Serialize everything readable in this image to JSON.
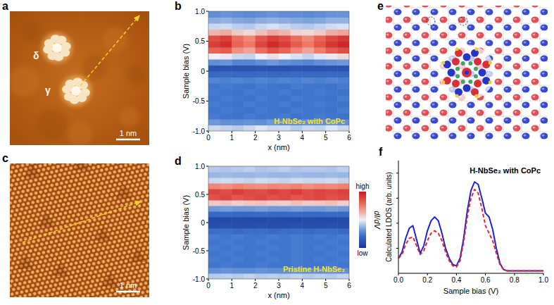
{
  "chart_data": [
    {
      "panel": "a",
      "type": "image",
      "labels": [
        "δ",
        "γ"
      ],
      "scale_bar": "1 nm"
    },
    {
      "panel": "b",
      "type": "heatmap",
      "annotation": "H-NbSe₂ with CoPc",
      "x_label": "x (nm)",
      "y_label": "Sample bias (V)",
      "xlim": [
        0,
        6
      ],
      "ylim": [
        -1,
        1
      ],
      "xticks": [
        0,
        1,
        2,
        3,
        4,
        5,
        6
      ],
      "yticks": [
        {
          "value": -1,
          "label": "-1.0"
        },
        -0.5,
        0,
        0.5,
        {
          "value": 1,
          "label": "1.0"
        }
      ],
      "xbins": [
        0,
        0.5,
        1,
        1.5,
        2,
        2.5,
        3,
        3.5,
        4,
        4.5,
        5,
        5.5,
        6
      ],
      "ybins": [
        -1,
        -0.9,
        -0.8,
        -0.7,
        -0.6,
        -0.5,
        -0.4,
        -0.3,
        -0.2,
        -0.1,
        0,
        0.1,
        0.2,
        0.3,
        0.4,
        0.5,
        0.6,
        0.7,
        0.8,
        0.9,
        1
      ],
      "cells": [
        [
          0.45,
          0.44,
          0.42,
          0.45,
          0.48,
          0.45,
          0.46,
          0.42,
          0.45,
          0.44,
          0.48,
          0.45
        ],
        [
          0.32,
          0.3,
          0.3,
          0.31,
          0.3,
          0.32,
          0.3,
          0.3,
          0.31,
          0.3,
          0.32,
          0.3
        ],
        [
          0.26,
          0.25,
          0.24,
          0.26,
          0.25,
          0.25,
          0.26,
          0.24,
          0.25,
          0.26,
          0.25,
          0.24
        ],
        [
          0.25,
          0.26,
          0.25,
          0.24,
          0.26,
          0.25,
          0.24,
          0.26,
          0.25,
          0.25,
          0.24,
          0.26
        ],
        [
          0.26,
          0.25,
          0.24,
          0.26,
          0.25,
          0.25,
          0.26,
          0.24,
          0.25,
          0.26,
          0.25,
          0.24
        ],
        [
          0.25,
          0.26,
          0.25,
          0.24,
          0.26,
          0.25,
          0.24,
          0.26,
          0.25,
          0.25,
          0.24,
          0.26
        ],
        [
          0.26,
          0.25,
          0.24,
          0.26,
          0.25,
          0.25,
          0.26,
          0.24,
          0.25,
          0.26,
          0.25,
          0.24
        ],
        [
          0.25,
          0.26,
          0.25,
          0.24,
          0.26,
          0.25,
          0.24,
          0.26,
          0.25,
          0.25,
          0.24,
          0.26
        ],
        [
          0.28,
          0.27,
          0.28,
          0.27,
          0.28,
          0.27,
          0.28,
          0.27,
          0.28,
          0.27,
          0.28,
          0.27
        ],
        [
          0.2,
          0.21,
          0.2,
          0.2,
          0.21,
          0.2,
          0.2,
          0.21,
          0.2,
          0.2,
          0.21,
          0.2
        ],
        [
          0.12,
          0.13,
          0.12,
          0.12,
          0.13,
          0.12,
          0.12,
          0.13,
          0.12,
          0.12,
          0.13,
          0.12
        ],
        [
          0.3,
          0.31,
          0.28,
          0.28,
          0.3,
          0.32,
          0.3,
          0.29,
          0.28,
          0.3,
          0.31,
          0.32
        ],
        [
          0.5,
          0.52,
          0.45,
          0.44,
          0.5,
          0.54,
          0.5,
          0.47,
          0.44,
          0.48,
          0.52,
          0.55
        ],
        [
          0.8,
          0.82,
          0.7,
          0.66,
          0.78,
          0.85,
          0.8,
          0.72,
          0.66,
          0.74,
          0.82,
          0.86
        ],
        [
          0.9,
          0.94,
          0.8,
          0.75,
          0.88,
          0.95,
          0.9,
          0.82,
          0.75,
          0.84,
          0.92,
          0.96
        ],
        [
          0.86,
          0.9,
          0.78,
          0.72,
          0.84,
          0.9,
          0.86,
          0.78,
          0.72,
          0.8,
          0.88,
          0.92
        ],
        [
          0.62,
          0.65,
          0.58,
          0.55,
          0.6,
          0.65,
          0.62,
          0.56,
          0.55,
          0.58,
          0.64,
          0.66
        ],
        [
          0.45,
          0.46,
          0.43,
          0.42,
          0.45,
          0.47,
          0.45,
          0.43,
          0.42,
          0.44,
          0.46,
          0.47
        ],
        [
          0.36,
          0.37,
          0.35,
          0.34,
          0.36,
          0.37,
          0.36,
          0.35,
          0.34,
          0.35,
          0.37,
          0.37
        ],
        [
          0.3,
          0.31,
          0.3,
          0.29,
          0.3,
          0.31,
          0.3,
          0.3,
          0.29,
          0.3,
          0.31,
          0.31
        ]
      ]
    },
    {
      "panel": "c",
      "type": "image",
      "scale_bar": "1 nm"
    },
    {
      "panel": "d",
      "type": "heatmap",
      "annotation": "Pristine H-NbSe₂",
      "x_label": "x (nm)",
      "y_label": "Sample bias (V)",
      "xlim": [
        0,
        6
      ],
      "ylim": [
        -1,
        1
      ],
      "xticks": [
        0,
        1,
        2,
        3,
        4,
        5,
        6
      ],
      "yticks": [
        {
          "value": -1,
          "label": "-1.0"
        },
        -0.5,
        0,
        0.5,
        {
          "value": 1,
          "label": "1.0"
        }
      ],
      "xbins": [
        0,
        0.5,
        1,
        1.5,
        2,
        2.5,
        3,
        3.5,
        4,
        4.5,
        5,
        5.5,
        6
      ],
      "ybins": [
        -1,
        -0.9,
        -0.8,
        -0.7,
        -0.6,
        -0.5,
        -0.4,
        -0.3,
        -0.2,
        -0.1,
        0,
        0.1,
        0.2,
        0.3,
        0.4,
        0.5,
        0.6,
        0.7,
        0.8,
        0.9,
        1
      ],
      "cells": [
        [
          0.42,
          0.43,
          0.42,
          0.44,
          0.42,
          0.43,
          0.42,
          0.44,
          0.42,
          0.43,
          0.42,
          0.44
        ],
        [
          0.3,
          0.31,
          0.3,
          0.3,
          0.31,
          0.3,
          0.3,
          0.31,
          0.3,
          0.3,
          0.31,
          0.3
        ],
        [
          0.25,
          0.26,
          0.25,
          0.25,
          0.26,
          0.25,
          0.25,
          0.26,
          0.25,
          0.25,
          0.26,
          0.25
        ],
        [
          0.26,
          0.25,
          0.26,
          0.25,
          0.25,
          0.26,
          0.25,
          0.26,
          0.25,
          0.26,
          0.25,
          0.26
        ],
        [
          0.25,
          0.26,
          0.25,
          0.25,
          0.26,
          0.25,
          0.25,
          0.26,
          0.25,
          0.25,
          0.26,
          0.25
        ],
        [
          0.26,
          0.25,
          0.26,
          0.25,
          0.25,
          0.26,
          0.25,
          0.26,
          0.25,
          0.26,
          0.25,
          0.26
        ],
        [
          0.25,
          0.26,
          0.25,
          0.25,
          0.26,
          0.25,
          0.25,
          0.26,
          0.25,
          0.25,
          0.26,
          0.25
        ],
        [
          0.26,
          0.25,
          0.26,
          0.25,
          0.25,
          0.26,
          0.25,
          0.26,
          0.25,
          0.26,
          0.25,
          0.26
        ],
        [
          0.22,
          0.22,
          0.21,
          0.22,
          0.22,
          0.21,
          0.22,
          0.22,
          0.21,
          0.22,
          0.22,
          0.21
        ],
        [
          0.1,
          0.11,
          0.1,
          0.1,
          0.11,
          0.1,
          0.1,
          0.11,
          0.1,
          0.1,
          0.11,
          0.1
        ],
        [
          0.08,
          0.08,
          0.09,
          0.08,
          0.08,
          0.09,
          0.08,
          0.08,
          0.09,
          0.08,
          0.08,
          0.09
        ],
        [
          0.2,
          0.21,
          0.2,
          0.2,
          0.21,
          0.2,
          0.2,
          0.21,
          0.2,
          0.2,
          0.21,
          0.2
        ],
        [
          0.32,
          0.33,
          0.32,
          0.32,
          0.33,
          0.32,
          0.32,
          0.33,
          0.32,
          0.32,
          0.33,
          0.32
        ],
        [
          0.58,
          0.6,
          0.57,
          0.59,
          0.6,
          0.58,
          0.57,
          0.6,
          0.58,
          0.59,
          0.6,
          0.57
        ],
        [
          0.85,
          0.88,
          0.84,
          0.86,
          0.88,
          0.85,
          0.87,
          0.84,
          0.86,
          0.88,
          0.85,
          0.87
        ],
        [
          0.88,
          0.86,
          0.9,
          0.87,
          0.86,
          0.89,
          0.87,
          0.9,
          0.86,
          0.88,
          0.87,
          0.89
        ],
        [
          0.72,
          0.7,
          0.73,
          0.71,
          0.7,
          0.72,
          0.71,
          0.73,
          0.7,
          0.72,
          0.71,
          0.73
        ],
        [
          0.45,
          0.46,
          0.45,
          0.44,
          0.46,
          0.45,
          0.44,
          0.46,
          0.45,
          0.45,
          0.46,
          0.44
        ],
        [
          0.38,
          0.39,
          0.38,
          0.38,
          0.39,
          0.38,
          0.38,
          0.39,
          0.38,
          0.38,
          0.39,
          0.38
        ],
        [
          0.42,
          0.41,
          0.42,
          0.43,
          0.41,
          0.42,
          0.43,
          0.41,
          0.42,
          0.42,
          0.41,
          0.43
        ]
      ],
      "colorbar": {
        "range": [
          0,
          1
        ],
        "ticks": [
          {
            "value": 0,
            "label": "low"
          },
          {
            "value": 1,
            "label": "high"
          }
        ],
        "label": "dI/dV"
      }
    },
    {
      "panel": "e",
      "type": "image"
    },
    {
      "panel": "f",
      "type": "line",
      "annotation": "H-NbSe₂ with CoPc",
      "x_label": "Sample bias (V)",
      "y_label": "Calculated LDOS (arb. units)",
      "xlim": [
        0,
        1
      ],
      "ylim": [
        0,
        0.9
      ],
      "xticks": [
        {
          "value": 0,
          "label": "0.0"
        },
        0.2,
        0.4,
        0.6,
        0.8,
        {
          "value": 1,
          "label": "1.0"
        }
      ],
      "yticks": [
        0.2,
        0.4,
        0.6,
        0.8
      ],
      "tick_labels": "x",
      "grid": false,
      "x": [
        0,
        0.025,
        0.05,
        0.075,
        0.1,
        0.125,
        0.15,
        0.175,
        0.2,
        0.225,
        0.25,
        0.275,
        0.3,
        0.325,
        0.35,
        0.375,
        0.4,
        0.425,
        0.45,
        0.475,
        0.5,
        0.525,
        0.55,
        0.575,
        0.6,
        0.625,
        0.65,
        0.675,
        0.7,
        0.725,
        0.75,
        0.775,
        0.8,
        0.825,
        0.85,
        0.875,
        0.9,
        0.925,
        0.95,
        0.975,
        1
      ],
      "series": [
        {
          "color": "#1c22d6",
          "line_style": "solid",
          "values": [
            0.12,
            0.17,
            0.28,
            0.36,
            0.38,
            0.27,
            0.16,
            0.22,
            0.34,
            0.42,
            0.45,
            0.42,
            0.32,
            0.2,
            0.12,
            0.07,
            0.06,
            0.12,
            0.28,
            0.5,
            0.66,
            0.73,
            0.71,
            0.6,
            0.48,
            0.45,
            0.35,
            0.2,
            0.08,
            0.03,
            0.02,
            0.02,
            0.02,
            0.02,
            0.02,
            0.02,
            0.02,
            0.02,
            0.02,
            0.02,
            0.02
          ]
        },
        {
          "color": "#e4262c",
          "line_style": "dashed",
          "values": [
            0.12,
            0.15,
            0.23,
            0.28,
            0.29,
            0.22,
            0.15,
            0.18,
            0.26,
            0.32,
            0.34,
            0.32,
            0.26,
            0.17,
            0.1,
            0.06,
            0.05,
            0.1,
            0.25,
            0.45,
            0.6,
            0.67,
            0.64,
            0.52,
            0.38,
            0.32,
            0.26,
            0.16,
            0.07,
            0.03,
            0.02,
            0.02,
            0.02,
            0.02,
            0.02,
            0.02,
            0.02,
            0.02,
            0.02,
            0.02,
            0.02
          ]
        }
      ]
    }
  ]
}
